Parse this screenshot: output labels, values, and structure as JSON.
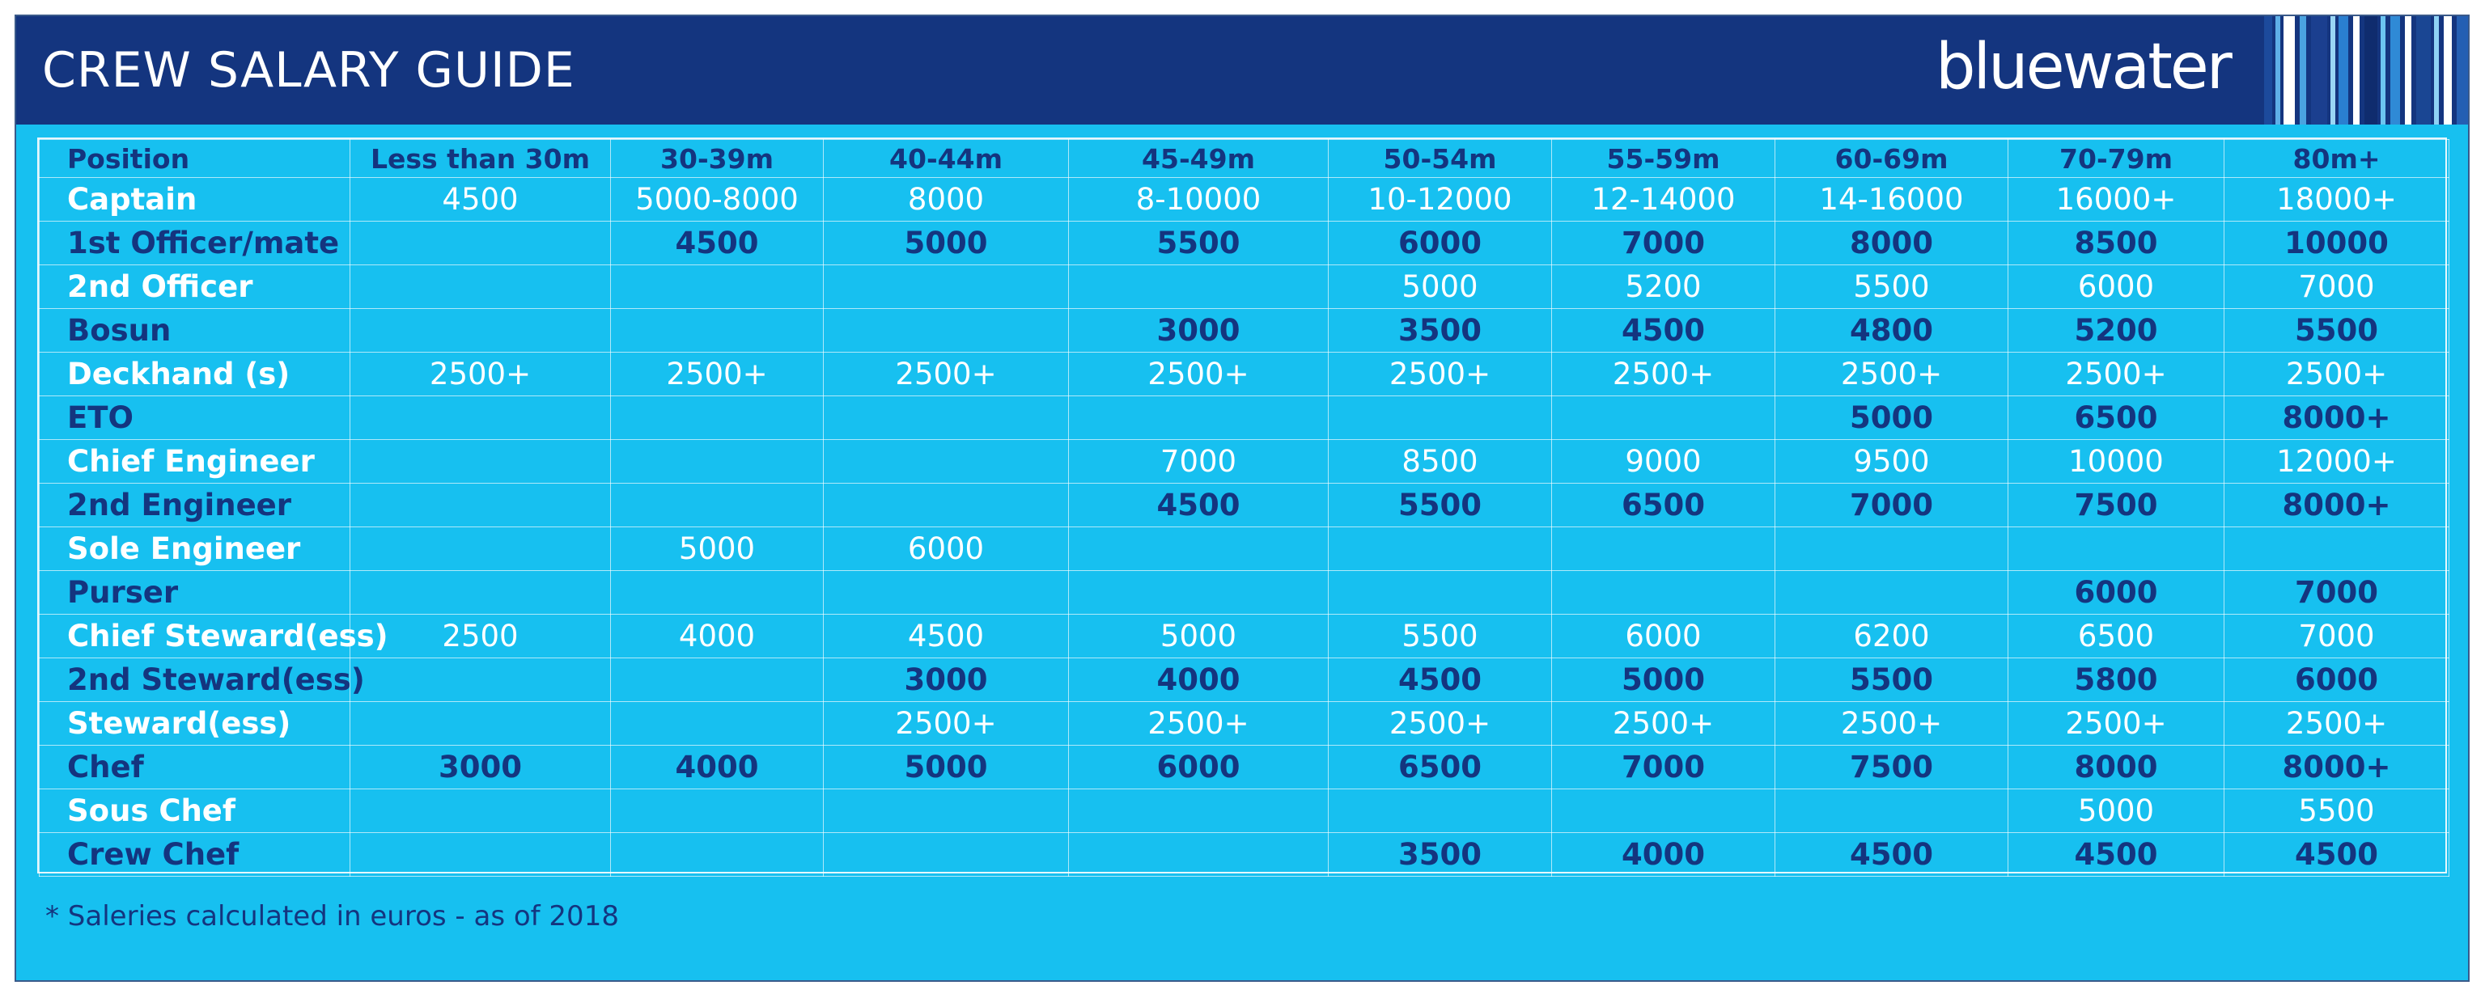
{
  "header": {
    "title": "CREW SALARY GUIDE",
    "logo_text": "bluewater",
    "colors": {
      "header_bg": "#14357f",
      "body_bg": "#17c0f0",
      "header_text": "#ffffff",
      "dark_text": "#14357f"
    }
  },
  "table": {
    "columns": [
      "Position",
      "Less than 30m",
      "30-39m",
      "40-44m",
      "45-49m",
      "50-54m",
      "55-59m",
      "60-69m",
      "70-79m",
      "80m+"
    ],
    "rows": [
      {
        "position": "Captain",
        "values": [
          "4500",
          "5000-8000",
          "8000",
          "8-10000",
          "10-12000",
          "12-14000",
          "14-16000",
          "16000+",
          "18000+"
        ]
      },
      {
        "position": "1st Officer/mate",
        "values": [
          "",
          "4500",
          "5000",
          "5500",
          "6000",
          "7000",
          "8000",
          "8500",
          "10000"
        ]
      },
      {
        "position": "2nd Officer",
        "values": [
          "",
          "",
          "",
          "",
          "5000",
          "5200",
          "5500",
          "6000",
          "7000"
        ]
      },
      {
        "position": "Bosun",
        "values": [
          "",
          "",
          "",
          "3000",
          "3500",
          "4500",
          "4800",
          "5200",
          "5500"
        ]
      },
      {
        "position": "Deckhand (s)",
        "values": [
          "2500+",
          "2500+",
          "2500+",
          "2500+",
          "2500+",
          "2500+",
          "2500+",
          "2500+",
          "2500+"
        ]
      },
      {
        "position": "ETO",
        "values": [
          "",
          "",
          "",
          "",
          "",
          "",
          "5000",
          "6500",
          "8000+"
        ]
      },
      {
        "position": "Chief Engineer",
        "values": [
          "",
          "",
          "",
          "7000",
          "8500",
          "9000",
          "9500",
          "10000",
          "12000+"
        ]
      },
      {
        "position": "2nd Engineer",
        "values": [
          "",
          "",
          "",
          "4500",
          "5500",
          "6500",
          "7000",
          "7500",
          "8000+"
        ]
      },
      {
        "position": "Sole Engineer",
        "values": [
          "",
          "5000",
          "6000",
          "",
          "",
          "",
          "",
          "",
          ""
        ]
      },
      {
        "position": "Purser",
        "values": [
          "",
          "",
          "",
          "",
          "",
          "",
          "",
          "6000",
          "7000"
        ]
      },
      {
        "position": "Chief Steward(ess)",
        "values": [
          "2500",
          "4000",
          "4500",
          "5000",
          "5500",
          "6000",
          "6200",
          "6500",
          "7000"
        ]
      },
      {
        "position": "2nd Steward(ess)",
        "values": [
          "",
          "",
          "3000",
          "4000",
          "4500",
          "5000",
          "5500",
          "5800",
          "6000"
        ]
      },
      {
        "position": "Steward(ess)",
        "values": [
          "",
          "",
          "2500+",
          "2500+",
          "2500+",
          "2500+",
          "2500+",
          "2500+",
          "2500+"
        ]
      },
      {
        "position": "Chef",
        "values": [
          "3000",
          "4000",
          "5000",
          "6000",
          "6500",
          "7000",
          "7500",
          "8000",
          "8000+"
        ]
      },
      {
        "position": "Sous Chef",
        "values": [
          "",
          "",
          "",
          "",
          "",
          "",
          "",
          "5000",
          "5500"
        ]
      },
      {
        "position": "Crew Chef",
        "values": [
          "",
          "",
          "",
          "",
          "3500",
          "4000",
          "4500",
          "4500",
          "4500"
        ]
      }
    ]
  },
  "footnote": "* Saleries calculated in euros - as of 2018"
}
